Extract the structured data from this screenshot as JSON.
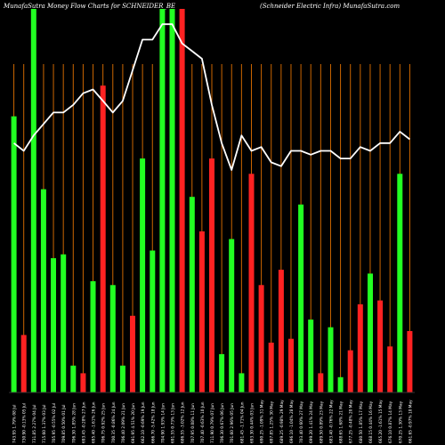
{
  "header": {
    "left": "MunafaSutra  Money Flow  Charts for SCHNEIDER_BE",
    "right": "(Schneider Electric Infra) MunafaSutra.com"
  },
  "colors": {
    "background": "#000000",
    "up": "#22ff22",
    "down": "#ff2222",
    "grid": "#cc6600",
    "line": "#ffffff",
    "label": "#ffffff"
  },
  "chart_data": {
    "type": "bar",
    "title": "MunafaSutra  Money Flow  Charts for SCHNEIDER_BE",
    "subtitle": "(Schneider Electric Infra) MunafaSutra.com",
    "grid": true,
    "ylim": [
      0,
      100
    ],
    "categories": [
      "Mon 08 Jul 2024",
      "Fri 05 Jul 2024",
      "Thu 04 Jul 2024",
      "Wed 03 Jul 2024",
      "Tue 02 Jul 2024",
      "Mon 01 Jul 2024",
      "Fri 28 Jun 2024",
      "Thu 27 Jun 2024",
      "Wed 26 Jun 2024",
      "Tue 25 Jun 2024",
      "Mon 24 Jun 2024",
      "Fri 21 Jun 2024",
      "Thu 20 Jun 2024",
      "Wed 19 Jun 2024",
      "Tue 18 Jun 2024",
      "Fri 14 Jun 2024",
      "Thu 13 Jun 2024",
      "Wed 12 Jun 2024",
      "Tue 11 Jun 2024",
      "Mon 10 Jun 2024",
      "Fri 07 Jun 2024",
      "Thu 06 Jun 2024",
      "Wed 05 Jun 2024",
      "Tue 04 Jun 2024",
      "Mon 03 Jun 2024",
      "Fri 31 May 2024",
      "Thu 30 May 2024",
      "Wed 29 May 2024",
      "Tue 28 May 2024",
      "Mon 27 May 2024",
      "Fri 24 May 2024",
      "Thu 23 May 2024",
      "Wed 22 May 2024",
      "Tue 21 May 2024",
      "Mon 20 May 2024",
      "Fri 17 May 2024",
      "Thu 16 May 2024",
      "Wed 15 May 2024",
      "Tue 14 May 2024",
      "Mon 13 May 2024",
      "Fri 10 May 2024"
    ],
    "x_labels": [
      "743.95 1.79% 08 Jul",
      "730.90 -0.13% 05 Jul",
      "731.85 2.27% 04 Jul",
      "715.60 1.37% 03 Jul",
      "705.95 -0.55% 02 Jul",
      "709.85 0.50% 01 Jul",
      "706.30 1.85% 28 Jun",
      "693.45 -0.28% 27 Jun",
      "695.40 -1.61% 26 Jun",
      "706.75 0.92% 25 Jun",
      "700.35 -0.86% 24 Jun",
      "706.40 2.09% 21 Jun",
      "691.95 4.51% 20 Jun",
      "662.10 -0.69% 19 Jun",
      "666.70 -5.42% 18 Jun",
      "704.90 1.93% 14 Jun",
      "691.55 0.73% 13 Jun",
      "686.55 -3.02% 12 Jun",
      "707.95 0.08% 11 Jun",
      "707.40 -0.63% 10 Jun",
      "711.90 0.79% 07 Jun",
      "706.30 0.67% 06 Jun",
      "701.60 2.96% 05 Jun",
      "681.45 -1.71% 04 Jun",
      "693.30 0.44% 03 Jun",
      "690.25 -1.09% 31 May",
      "697.85 1.25% 30 May",
      "689.25 -0.98% 29 May",
      "696.10 -1.04% 28 May",
      "703.40 0.60% 27 May",
      "699.20 1.41% 24 May",
      "689.50 0.89% 23 May",
      "683.40 -0.76% 22 May",
      "688.65 1.68% 21 May",
      "677.25 -0.48% 20 May",
      "680.50 1.85% 17 May",
      "668.15 0.44% 16 May",
      "665.20 -1.61% 15 May",
      "676.10 0.87% 14 May",
      "670.25 1.30% 13 May",
      "661.65 -0.97% 10 May"
    ],
    "series": [
      {
        "values": [
          72,
          15,
          100,
          53,
          35,
          36,
          7,
          5,
          29,
          80,
          28,
          7,
          20,
          61,
          37,
          100,
          100,
          100,
          51,
          42,
          61,
          10,
          40,
          5,
          57,
          28,
          13,
          32,
          14,
          49,
          19,
          5,
          17,
          4,
          11,
          23,
          31,
          24,
          12,
          57,
          16
        ],
        "direction": [
          "up",
          "down",
          "up",
          "up",
          "up",
          "up",
          "up",
          "down",
          "up",
          "down",
          "up",
          "up",
          "down",
          "up",
          "up",
          "up",
          "up",
          "down",
          "up",
          "down",
          "down",
          "up",
          "up",
          "up",
          "down",
          "down",
          "down",
          "down",
          "down",
          "up",
          "up",
          "down",
          "up",
          "up",
          "down",
          "down",
          "up",
          "down",
          "down",
          "up",
          "down"
        ]
      },
      {
        "type": "line",
        "values": [
          65,
          63,
          67,
          70,
          73,
          73,
          75,
          78,
          79,
          76,
          73,
          76,
          84,
          92,
          92,
          96,
          96,
          91,
          89,
          87,
          75,
          65,
          58,
          67,
          63,
          64,
          60,
          59,
          63,
          63,
          62,
          63,
          63,
          61,
          61,
          64,
          63,
          65,
          65,
          68,
          66
        ]
      }
    ]
  }
}
